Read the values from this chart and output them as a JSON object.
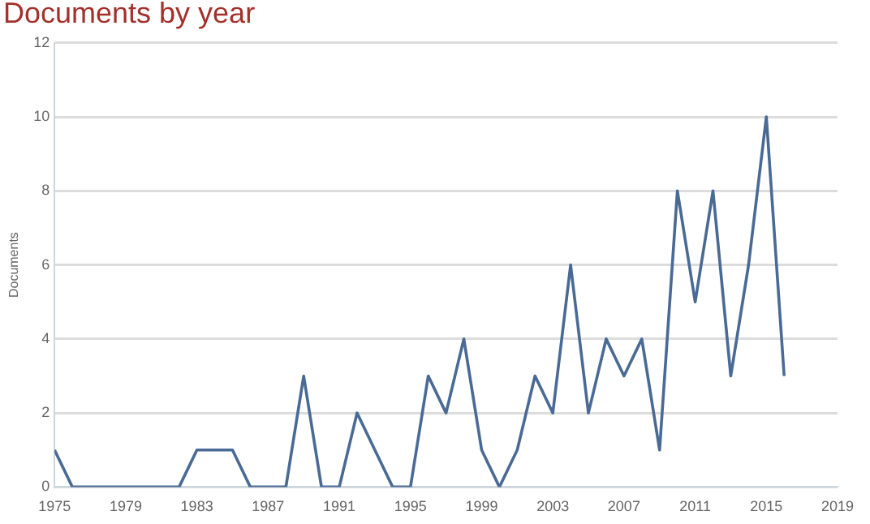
{
  "chart_data": {
    "type": "line",
    "title": "Documents by year",
    "ylabel": "Documents",
    "x": [
      1975,
      1976,
      1977,
      1978,
      1979,
      1980,
      1981,
      1982,
      1983,
      1984,
      1985,
      1986,
      1987,
      1988,
      1989,
      1990,
      1991,
      1992,
      1993,
      1994,
      1995,
      1996,
      1997,
      1998,
      1999,
      2000,
      2001,
      2002,
      2003,
      2004,
      2005,
      2006,
      2007,
      2008,
      2009,
      2010,
      2011,
      2012,
      2013,
      2014,
      2015,
      2016
    ],
    "series": [
      {
        "color": "#4a6a96",
        "values": [
          1,
          0,
          0,
          0,
          0,
          0,
          0,
          0,
          1,
          1,
          1,
          0,
          0,
          0,
          3,
          0,
          0,
          2,
          1,
          0,
          0,
          3,
          2,
          4,
          1,
          0,
          1,
          3,
          2,
          6,
          2,
          4,
          3,
          4,
          1,
          8,
          5,
          8,
          3,
          6,
          10,
          3
        ]
      }
    ],
    "xlim": [
      1975,
      2019
    ],
    "xticks": [
      1975,
      1979,
      1983,
      1987,
      1991,
      1995,
      1999,
      2003,
      2007,
      2011,
      2015,
      2019
    ],
    "ylim": [
      0,
      12
    ],
    "yticks": [
      0,
      2,
      4,
      6,
      8,
      10,
      12
    ],
    "grid": "y",
    "legend": false,
    "marker": "none",
    "line_style": "solid"
  }
}
